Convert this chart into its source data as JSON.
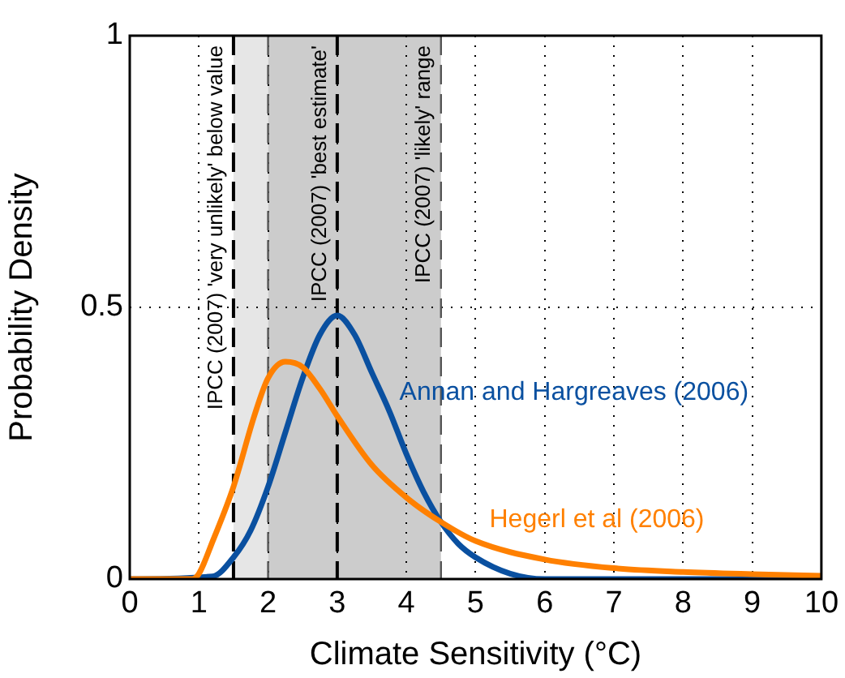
{
  "chart_data": {
    "type": "line",
    "xlabel": "Climate Sensitivity (°C)",
    "ylabel": "Probability Density",
    "xlim": [
      0,
      10
    ],
    "xticks": [
      0,
      1,
      2,
      3,
      4,
      5,
      6,
      7,
      8,
      9,
      10
    ],
    "ylim": [
      0,
      1
    ],
    "yticks": [
      0,
      0.5,
      1
    ],
    "grid": true,
    "legend": false,
    "marker": "none",
    "line_style": "solid",
    "bands": [
      {
        "axis": "x",
        "from": 1.5,
        "to": 2,
        "color": "#e6e6e6"
      },
      {
        "axis": "x",
        "from": 2,
        "to": 4.5,
        "color": "#cccccc",
        "label": "IPCC (2007) 'likely' range"
      }
    ],
    "ref_lines": [
      {
        "axis": "x",
        "value": 1.5,
        "label": "IPCC (2007) 'very unlikely' below value",
        "color": "#000000",
        "line_style": "dashed"
      },
      {
        "axis": "x",
        "value": 2,
        "color": "#555555",
        "line_style": "dashed"
      },
      {
        "axis": "x",
        "value": 3,
        "label": "IPCC (2007) 'best estimate'",
        "color": "#000000",
        "line_style": "dashed"
      },
      {
        "axis": "x",
        "value": 4.5,
        "color": "#555555",
        "line_style": "dashed"
      }
    ],
    "series": [
      {
        "name": "Hegerl et al (2006)",
        "color": "#ff8000",
        "x": [
          0,
          0.9,
          1.0,
          1.2,
          1.5,
          1.8,
          2.0,
          2.25,
          2.5,
          2.75,
          3,
          3.5,
          4,
          4.5,
          5,
          6,
          7,
          8,
          9,
          10
        ],
        "values": [
          0,
          0,
          0.01,
          0.07,
          0.17,
          0.3,
          0.37,
          0.4,
          0.39,
          0.35,
          0.3,
          0.21,
          0.15,
          0.105,
          0.07,
          0.036,
          0.02,
          0.013,
          0.009,
          0.006
        ]
      },
      {
        "name": "Annan and Hargreaves (2006)",
        "color": "#0a50a0",
        "x": [
          0,
          1.2,
          1.5,
          1.75,
          2,
          2.25,
          2.5,
          2.75,
          3,
          3.25,
          3.5,
          3.75,
          4,
          4.25,
          4.5,
          4.75,
          5,
          5.5,
          6,
          10
        ],
        "values": [
          0,
          0.005,
          0.04,
          0.09,
          0.17,
          0.27,
          0.37,
          0.45,
          0.485,
          0.45,
          0.38,
          0.31,
          0.23,
          0.16,
          0.105,
          0.065,
          0.04,
          0.01,
          0,
          0
        ]
      }
    ]
  }
}
